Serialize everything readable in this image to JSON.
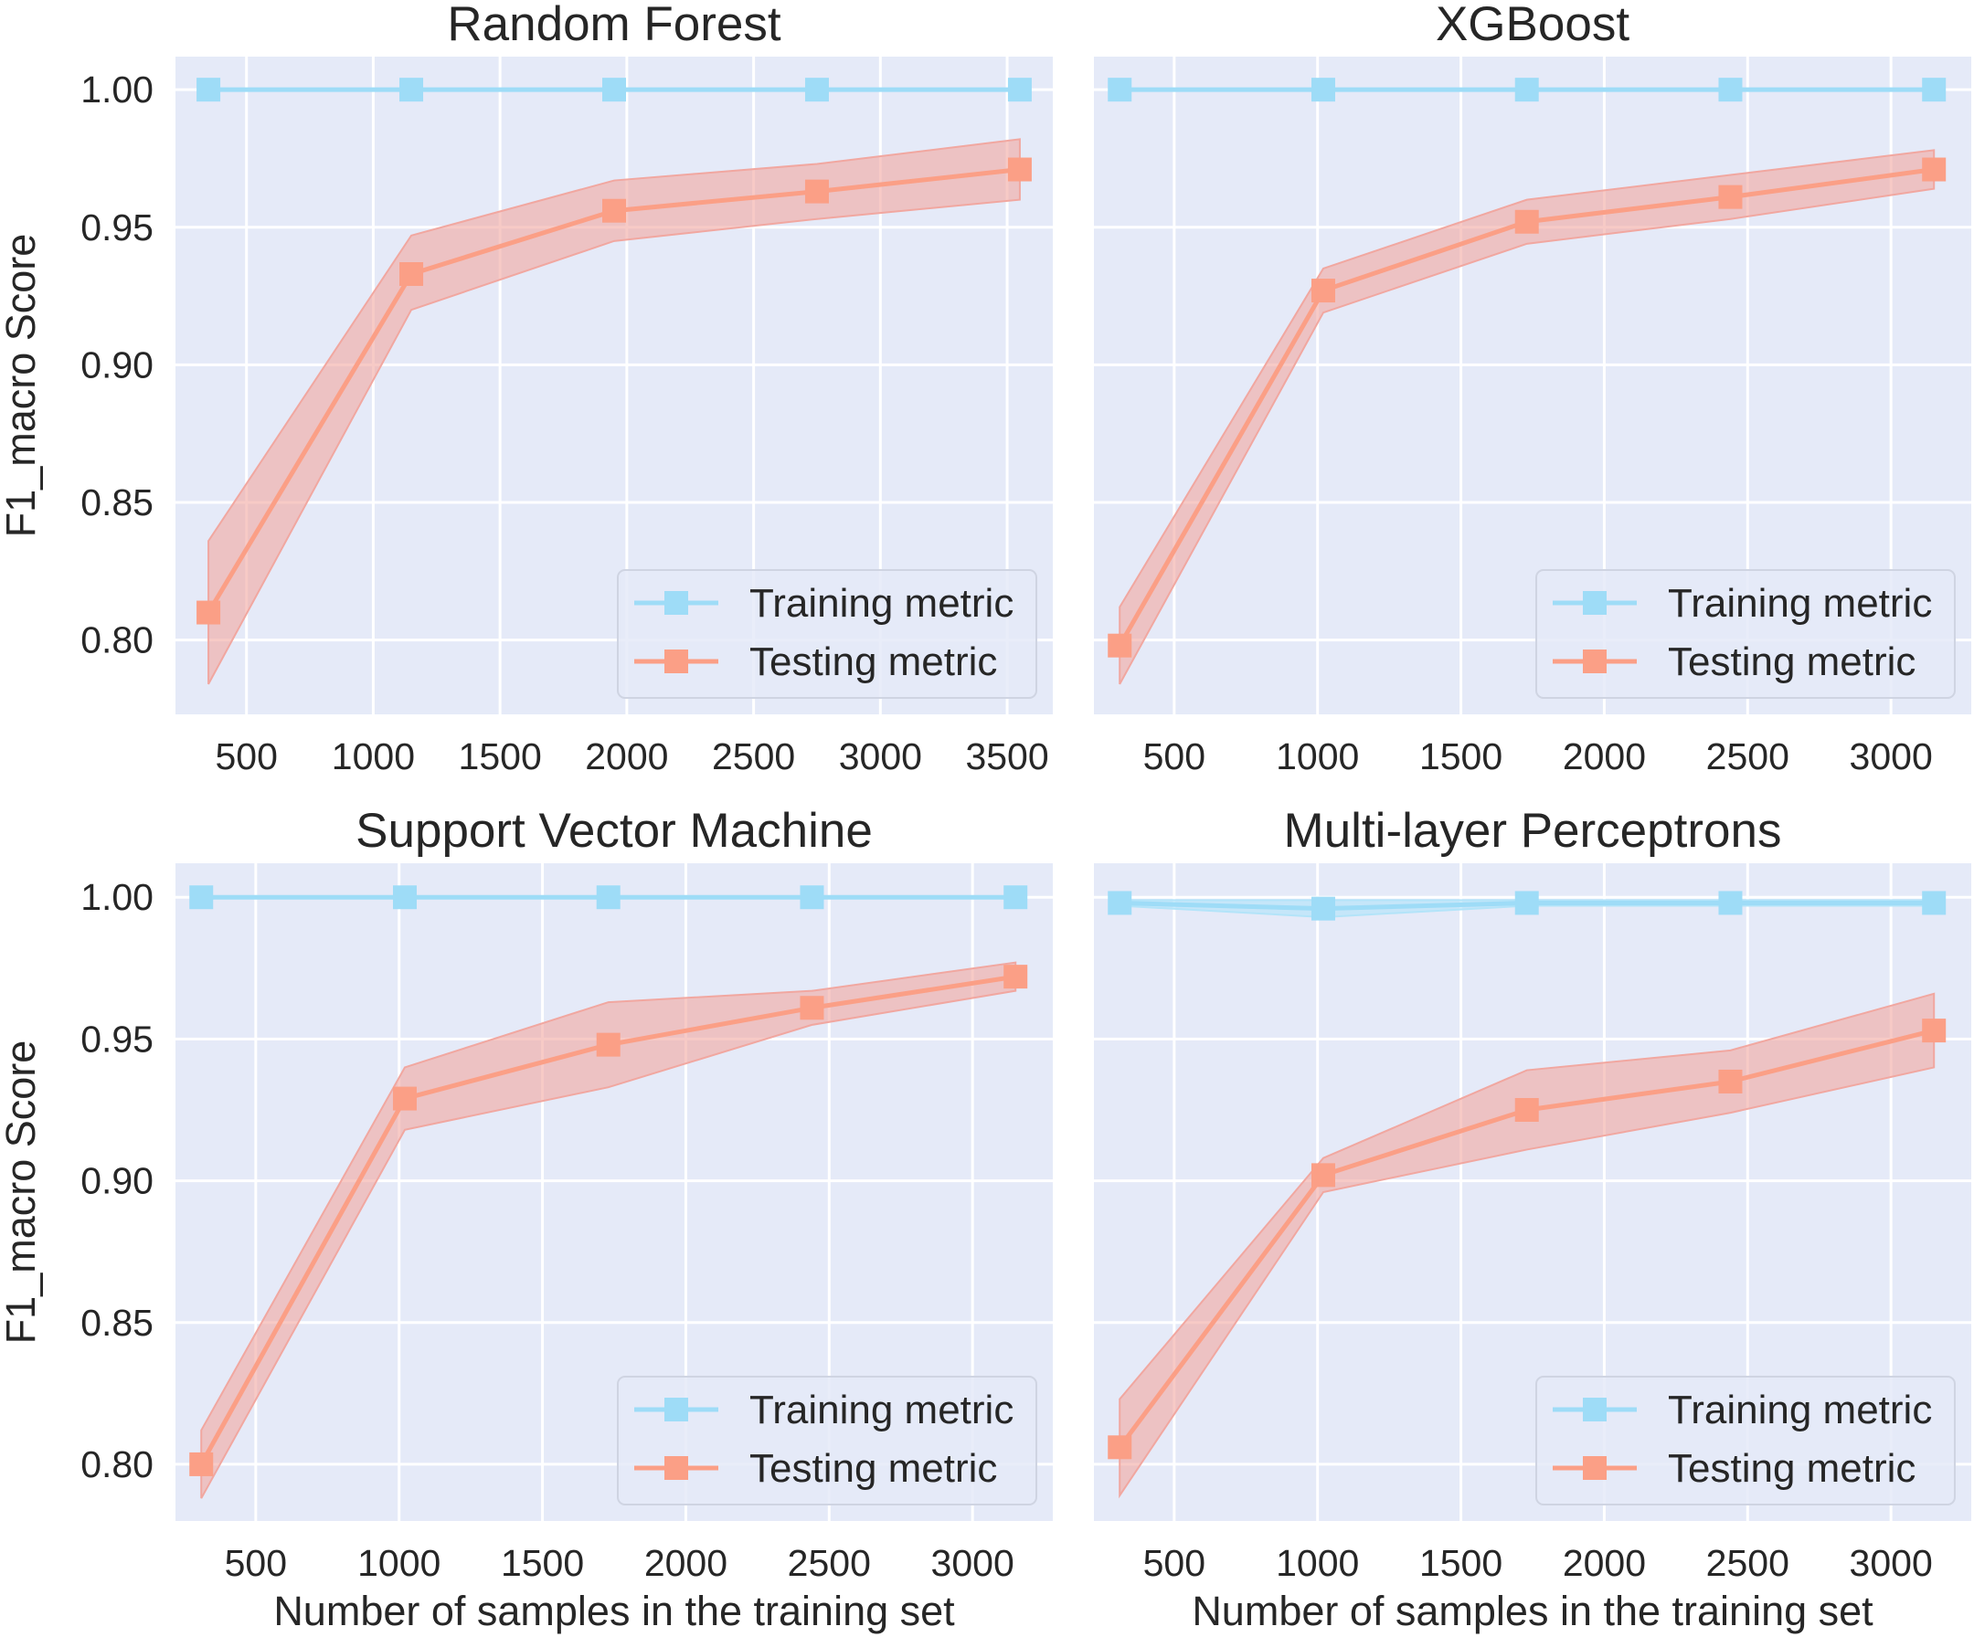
{
  "figure": {
    "ylabel": "F1_macro Score",
    "xlabel": "Number of samples in the training set"
  },
  "colors": {
    "plot_bg": "#e5eaf8",
    "grid": "#ffffff",
    "train": "#9edcf7",
    "train_band": "#b3e4f9",
    "test": "#fb9f86",
    "test_band": "#f1a7a0",
    "text": "#262626"
  },
  "legend": {
    "train_label": "Training metric",
    "test_label": "Testing metric",
    "placement": "lower right"
  },
  "chart_data": [
    {
      "type": "line",
      "title": "Random Forest",
      "xlabel": "",
      "ylabel": "F1_macro Score",
      "xlim": [
        220,
        3680
      ],
      "ylim": [
        0.773,
        1.012
      ],
      "xticks": [
        500,
        1000,
        1500,
        2000,
        2500,
        3000,
        3500
      ],
      "yticks": [
        0.8,
        0.85,
        0.9,
        0.95,
        1.0
      ],
      "xtick_labels": [
        "500",
        "1000",
        "1500",
        "2000",
        "2500",
        "3000",
        "3500"
      ],
      "ytick_labels": [
        "0.80",
        "0.85",
        "0.90",
        "0.95",
        "1.00"
      ],
      "grid": true,
      "x": [
        350,
        1150,
        1950,
        2750,
        3550
      ],
      "series": [
        {
          "name": "Training metric",
          "values": [
            1.0,
            1.0,
            1.0,
            1.0,
            1.0
          ],
          "upper": [
            1.0,
            1.0,
            1.0,
            1.0,
            1.0
          ],
          "lower": [
            1.0,
            1.0,
            1.0,
            1.0,
            1.0
          ]
        },
        {
          "name": "Testing metric",
          "values": [
            0.81,
            0.933,
            0.956,
            0.963,
            0.971
          ],
          "upper": [
            0.836,
            0.947,
            0.967,
            0.973,
            0.982
          ],
          "lower": [
            0.784,
            0.92,
            0.945,
            0.953,
            0.96
          ]
        }
      ]
    },
    {
      "type": "line",
      "title": "XGBoost",
      "xlabel": "",
      "ylabel": "",
      "xlim": [
        220,
        3280
      ],
      "ylim": [
        0.773,
        1.012
      ],
      "xticks": [
        500,
        1000,
        1500,
        2000,
        2500,
        3000
      ],
      "yticks": [
        0.8,
        0.85,
        0.9,
        0.95,
        1.0
      ],
      "xtick_labels": [
        "500",
        "1000",
        "1500",
        "2000",
        "2500",
        "3000"
      ],
      "ytick_labels": [],
      "grid": true,
      "x": [
        310,
        1020,
        1730,
        2440,
        3150
      ],
      "series": [
        {
          "name": "Training metric",
          "values": [
            1.0,
            1.0,
            1.0,
            1.0,
            1.0
          ],
          "upper": [
            1.0,
            1.0,
            1.0,
            1.0,
            1.0
          ],
          "lower": [
            1.0,
            1.0,
            1.0,
            1.0,
            1.0
          ]
        },
        {
          "name": "Testing metric",
          "values": [
            0.798,
            0.927,
            0.952,
            0.961,
            0.971
          ],
          "upper": [
            0.812,
            0.935,
            0.96,
            0.969,
            0.978
          ],
          "lower": [
            0.784,
            0.919,
            0.944,
            0.953,
            0.964
          ]
        }
      ]
    },
    {
      "type": "line",
      "title": "Support Vector Machine",
      "xlabel": "Number of samples in the training set",
      "ylabel": "F1_macro Score",
      "xlim": [
        220,
        3280
      ],
      "ylim": [
        0.78,
        1.012
      ],
      "xticks": [
        500,
        1000,
        1500,
        2000,
        2500,
        3000
      ],
      "yticks": [
        0.8,
        0.85,
        0.9,
        0.95,
        1.0
      ],
      "xtick_labels": [
        "500",
        "1000",
        "1500",
        "2000",
        "2500",
        "3000"
      ],
      "ytick_labels": [
        "0.80",
        "0.85",
        "0.90",
        "0.95",
        "1.00"
      ],
      "grid": true,
      "x": [
        310,
        1020,
        1730,
        2440,
        3150
      ],
      "series": [
        {
          "name": "Training metric",
          "values": [
            1.0,
            1.0,
            1.0,
            1.0,
            1.0
          ],
          "upper": [
            1.0,
            1.0,
            1.0,
            1.0,
            1.0
          ],
          "lower": [
            1.0,
            1.0,
            1.0,
            1.0,
            1.0
          ]
        },
        {
          "name": "Testing metric",
          "values": [
            0.8,
            0.929,
            0.948,
            0.961,
            0.972
          ],
          "upper": [
            0.812,
            0.94,
            0.963,
            0.967,
            0.977
          ],
          "lower": [
            0.788,
            0.918,
            0.933,
            0.955,
            0.967
          ]
        }
      ]
    },
    {
      "type": "line",
      "title": "Multi-layer Perceptrons",
      "xlabel": "Number of samples in the training set",
      "ylabel": "",
      "xlim": [
        220,
        3280
      ],
      "ylim": [
        0.78,
        1.012
      ],
      "xticks": [
        500,
        1000,
        1500,
        2000,
        2500,
        3000
      ],
      "yticks": [
        0.8,
        0.85,
        0.9,
        0.95,
        1.0
      ],
      "xtick_labels": [
        "500",
        "1000",
        "1500",
        "2000",
        "2500",
        "3000"
      ],
      "ytick_labels": [],
      "grid": true,
      "x": [
        310,
        1020,
        1730,
        2440,
        3150
      ],
      "series": [
        {
          "name": "Training metric",
          "values": [
            0.998,
            0.996,
            0.998,
            0.998,
            0.998
          ],
          "upper": [
            0.999,
            0.999,
            0.999,
            0.999,
            0.999
          ],
          "lower": [
            0.997,
            0.993,
            0.997,
            0.997,
            0.997
          ]
        },
        {
          "name": "Testing metric",
          "values": [
            0.806,
            0.902,
            0.925,
            0.935,
            0.953
          ],
          "upper": [
            0.823,
            0.908,
            0.939,
            0.946,
            0.966
          ],
          "lower": [
            0.789,
            0.896,
            0.911,
            0.924,
            0.94
          ]
        }
      ]
    }
  ]
}
